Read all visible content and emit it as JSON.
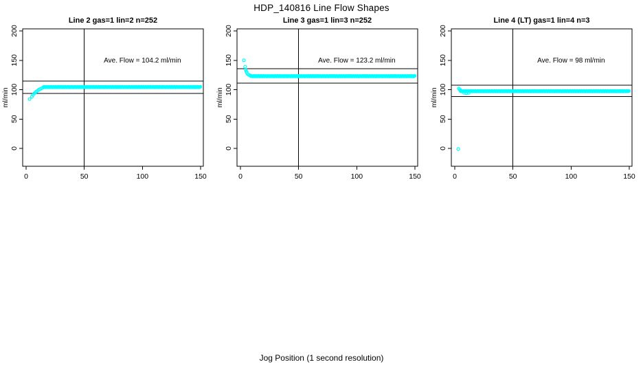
{
  "page": {
    "title": "HDP_140816  Line Flow Shapes",
    "xlabel": "Jog Position (1 second resolution)"
  },
  "colors": {
    "series": "#00FFFF",
    "axis": "#000000",
    "text": "#000000",
    "background": "#FFFFFF"
  },
  "chart_data": [
    {
      "type": "scatter",
      "title": "Line 2 gas=1 lin=2 n=252",
      "ylabel": "ml/min",
      "xlim": [
        0,
        150
      ],
      "ylim": [
        0,
        200
      ],
      "x_ticks": [
        0,
        50,
        100,
        150
      ],
      "y_ticks": [
        0,
        50,
        100,
        150,
        200
      ],
      "vline_x": 50,
      "hlines_y": [
        93.8,
        114.6
      ],
      "ave_flow": 104.2,
      "annotation": {
        "text": "Ave. Flow =  104.2  ml/min",
        "x": 100,
        "y": 146
      },
      "head_points": [
        [
          3,
          84
        ],
        [
          5,
          88
        ],
        [
          6,
          91
        ],
        [
          7,
          93.5
        ],
        [
          8,
          95.5
        ],
        [
          9,
          97
        ],
        [
          10,
          98.5
        ],
        [
          11,
          100
        ],
        [
          12,
          101
        ],
        [
          13,
          102
        ],
        [
          14,
          103
        ]
      ],
      "band": {
        "x_start": 15,
        "x_end": 150,
        "y": 104.5,
        "spread": 1.2
      },
      "outlier_points": []
    },
    {
      "type": "scatter",
      "title": "Line 3 gas=1 lin=3 n=252",
      "ylabel": "ml/min",
      "xlim": [
        0,
        150
      ],
      "ylim": [
        0,
        200
      ],
      "x_ticks": [
        0,
        50,
        100,
        150
      ],
      "y_ticks": [
        0,
        50,
        100,
        150,
        200
      ],
      "vline_x": 50,
      "hlines_y": [
        110.9,
        135.5
      ],
      "ave_flow": 123.2,
      "annotation": {
        "text": "Ave. Flow =  123.2  ml/min",
        "x": 100,
        "y": 146
      },
      "head_points": [
        [
          3,
          150
        ],
        [
          4,
          139
        ],
        [
          4.5,
          134
        ],
        [
          5,
          131
        ],
        [
          5.5,
          129
        ],
        [
          6,
          127
        ],
        [
          7,
          125.5
        ],
        [
          8,
          124.5
        ],
        [
          9,
          124
        ]
      ],
      "band": {
        "x_start": 9,
        "x_end": 150,
        "y": 123,
        "spread": 1.2
      },
      "outlier_points": []
    },
    {
      "type": "scatter",
      "title": "Line 4 (LT) gas=1 lin=4 n=3",
      "ylabel": "ml/min",
      "xlim": [
        0,
        150
      ],
      "ylim": [
        0,
        200
      ],
      "x_ticks": [
        0,
        50,
        100,
        150
      ],
      "y_ticks": [
        0,
        50,
        100,
        150,
        200
      ],
      "vline_x": 50,
      "hlines_y": [
        88.2,
        107.8
      ],
      "ave_flow": 98,
      "annotation": {
        "text": "Ave. Flow =  98  ml/min",
        "x": 100,
        "y": 146
      },
      "head_points": [
        [
          3.5,
          102
        ],
        [
          4,
          100.5
        ],
        [
          5,
          99.5
        ],
        [
          8,
          94.5
        ],
        [
          10,
          94
        ],
        [
          12,
          94.5
        ]
      ],
      "band": {
        "x_start": 5,
        "x_end": 150,
        "y": 97.5,
        "spread": 1.0
      },
      "outlier_points": [
        [
          3,
          -1
        ]
      ]
    }
  ]
}
